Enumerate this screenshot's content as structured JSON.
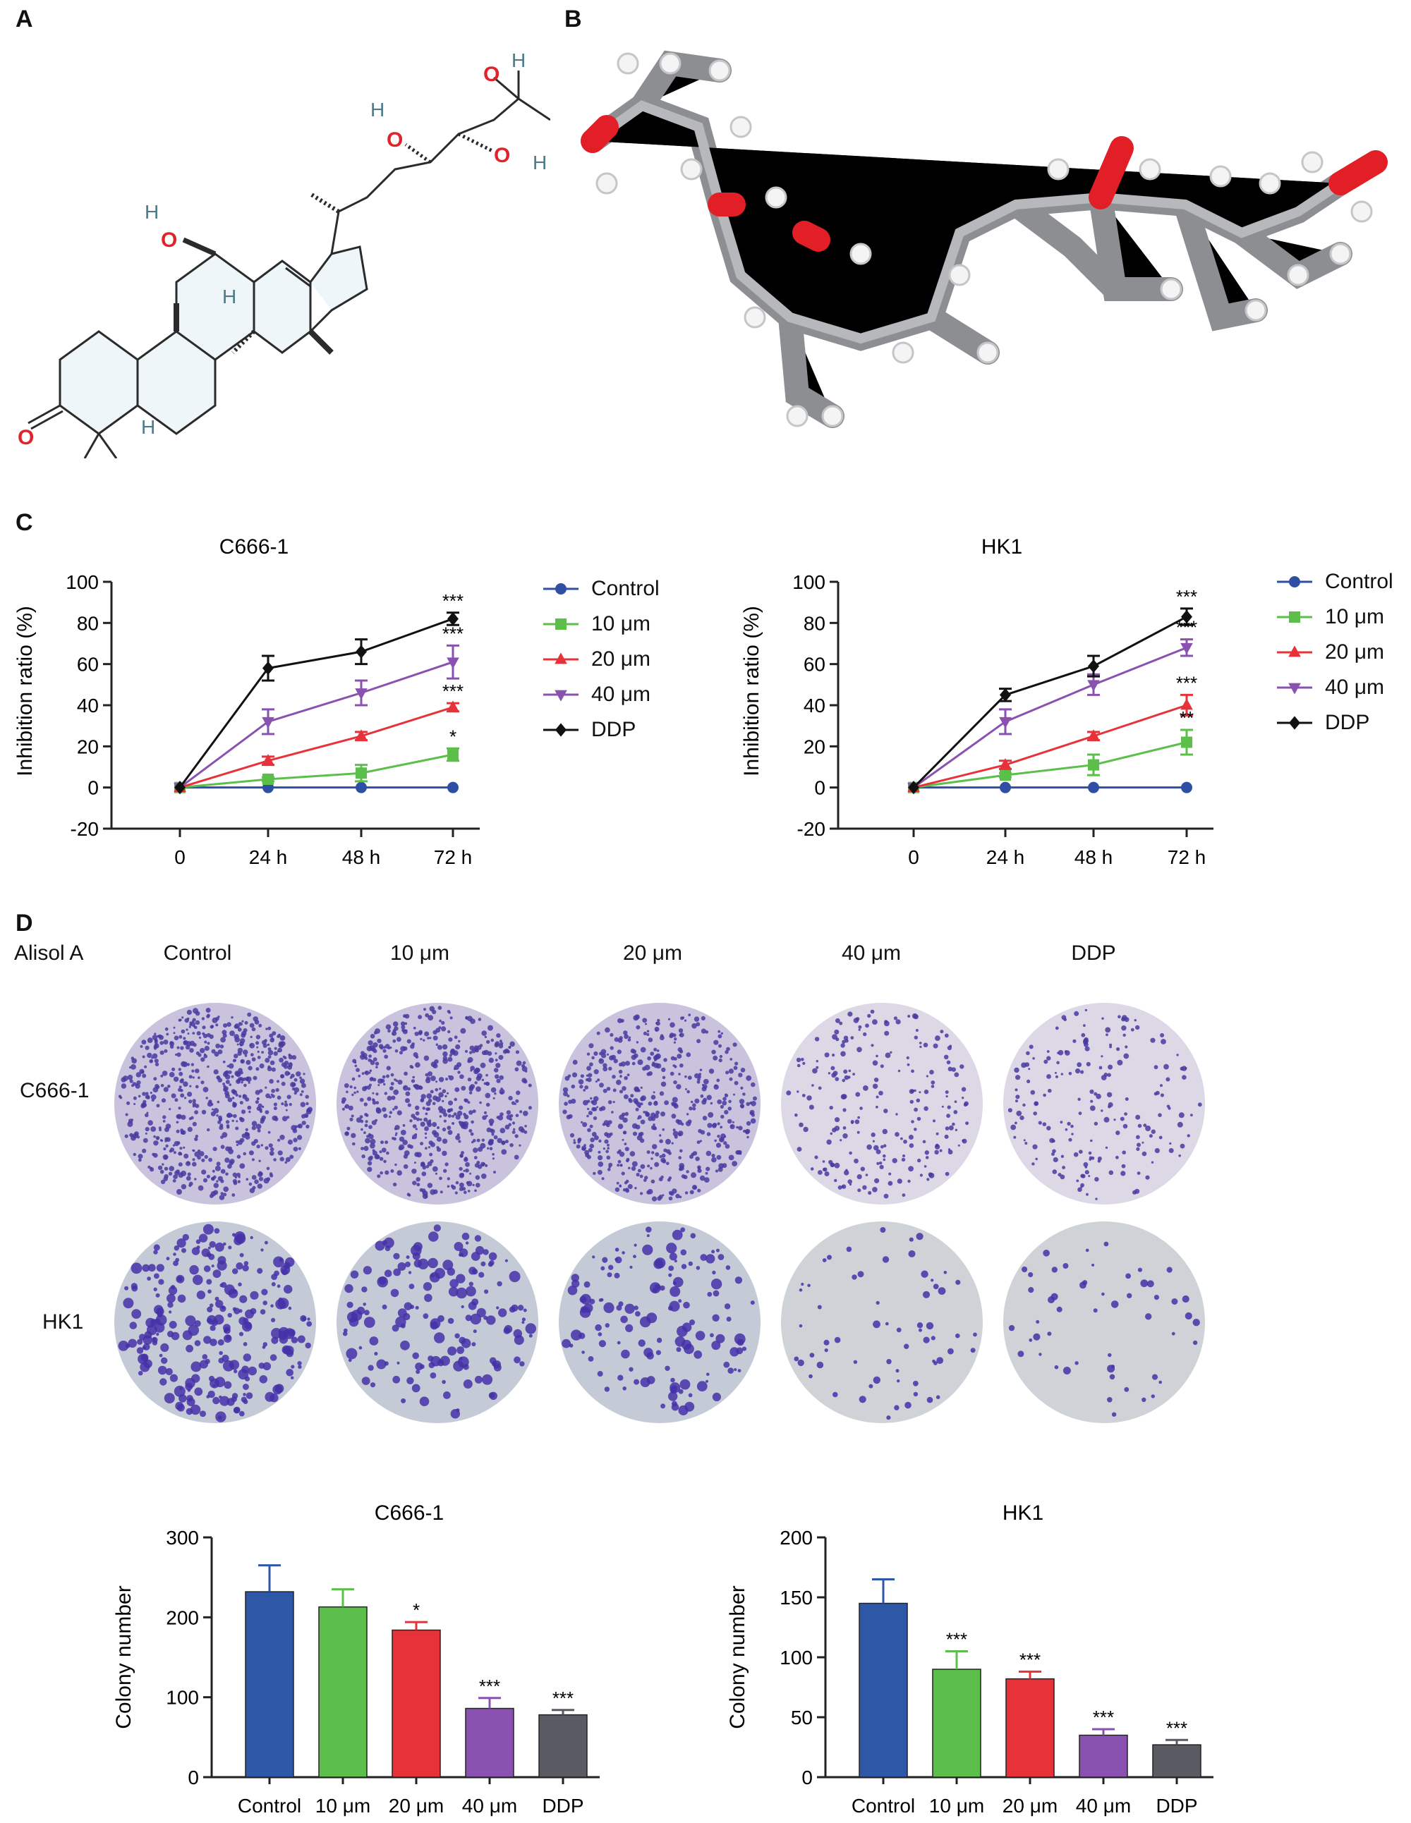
{
  "panels": {
    "a": "A",
    "b": "B",
    "c": "C",
    "d": "D"
  },
  "molecule_2d_atoms": {
    "o": "O",
    "h": "H"
  },
  "line_charts": [
    {
      "id": "c666",
      "title": "C666-1",
      "ylabel": "Inhibition ratio (%)",
      "xticks": [
        "0",
        "24 h",
        "48 h",
        "72 h"
      ],
      "yticks": [
        100,
        80,
        60,
        40,
        20,
        0,
        -20
      ],
      "ylim": [
        -20,
        100
      ],
      "series": [
        {
          "name": "Control",
          "color": "#2e4fa3",
          "marker": "circle",
          "values": [
            0,
            0,
            0,
            0
          ],
          "errors": [
            0,
            0,
            0,
            0
          ]
        },
        {
          "name": "10 μm",
          "color": "#5bbf4a",
          "marker": "square",
          "values": [
            0,
            4,
            7,
            16
          ],
          "errors": [
            0,
            1,
            4,
            3
          ]
        },
        {
          "name": "20 μm",
          "color": "#e8323a",
          "marker": "triangle-up",
          "values": [
            0,
            13,
            25,
            39
          ],
          "errors": [
            0,
            2,
            2,
            2
          ]
        },
        {
          "name": "40 μm",
          "color": "#8a52b0",
          "marker": "triangle-down",
          "values": [
            0,
            32,
            46,
            61
          ],
          "errors": [
            0,
            6,
            6,
            8
          ]
        },
        {
          "name": "DDP",
          "color": "#111111",
          "marker": "diamond",
          "values": [
            0,
            58,
            66,
            82
          ],
          "errors": [
            0,
            6,
            6,
            3
          ]
        }
      ],
      "significance": [
        {
          "series": "DDP",
          "label": "***"
        },
        {
          "series": "40 μm",
          "label": "***"
        },
        {
          "series": "20 μm",
          "label": "***"
        },
        {
          "series": "10 μm",
          "label": "*"
        }
      ]
    },
    {
      "id": "hk1",
      "title": "HK1",
      "ylabel": "Inhibition ratio (%)",
      "xticks": [
        "0",
        "24 h",
        "48 h",
        "72 h"
      ],
      "yticks": [
        100,
        80,
        60,
        40,
        20,
        0,
        -20
      ],
      "ylim": [
        -20,
        100
      ],
      "series": [
        {
          "name": "Control",
          "color": "#2e4fa3",
          "marker": "circle",
          "values": [
            0,
            0,
            0,
            0
          ],
          "errors": [
            0,
            0,
            0,
            0
          ]
        },
        {
          "name": "10 μm",
          "color": "#5bbf4a",
          "marker": "square",
          "values": [
            0,
            6,
            11,
            22
          ],
          "errors": [
            0,
            1,
            5,
            6
          ]
        },
        {
          "name": "20 μm",
          "color": "#e8323a",
          "marker": "triangle-up",
          "values": [
            0,
            11,
            25,
            40
          ],
          "errors": [
            0,
            2,
            2,
            5
          ]
        },
        {
          "name": "40 μm",
          "color": "#8a52b0",
          "marker": "triangle-down",
          "values": [
            0,
            32,
            50,
            68
          ],
          "errors": [
            0,
            6,
            5,
            4
          ]
        },
        {
          "name": "DDP",
          "color": "#111111",
          "marker": "diamond",
          "values": [
            0,
            45,
            59,
            83
          ],
          "errors": [
            0,
            3,
            5,
            4
          ]
        }
      ],
      "significance": [
        {
          "series": "DDP",
          "label": "***"
        },
        {
          "series": "40 μm",
          "label": "***"
        },
        {
          "series": "20 μm",
          "label": "***"
        },
        {
          "series": "10 μm",
          "label": "**"
        }
      ]
    }
  ],
  "colony_assay": {
    "treatment_label": "Alisol A",
    "columns": [
      "Control",
      "10 μm",
      "20 μm",
      "40 μm",
      "DDP"
    ],
    "rows": [
      "C666-1",
      "HK1"
    ],
    "colony_density": {
      "C666-1": [
        1.0,
        0.9,
        0.78,
        0.35,
        0.3
      ],
      "HK1": [
        1.0,
        0.62,
        0.55,
        0.24,
        0.2
      ]
    }
  },
  "chart_data": [
    {
      "type": "bar",
      "title": "C666-1",
      "ylabel": "Colony number",
      "categories": [
        "Control",
        "10 μm",
        "20 μm",
        "40 μm",
        "DDP"
      ],
      "values": [
        232,
        213,
        184,
        86,
        78
      ],
      "errors": [
        33,
        22,
        10,
        13,
        6
      ],
      "significance": [
        "",
        "",
        "*",
        "***",
        "***"
      ],
      "colors": [
        "#2f57a8",
        "#5cbf4b",
        "#e8323a",
        "#8a52b0",
        "#5a5b62"
      ],
      "ylim": [
        0,
        300
      ],
      "yticks": [
        0,
        100,
        200,
        300
      ]
    },
    {
      "type": "bar",
      "title": "HK1",
      "ylabel": "Colony number",
      "categories": [
        "Control",
        "10 μm",
        "20 μm",
        "40 μm",
        "DDP"
      ],
      "values": [
        145,
        90,
        82,
        35,
        27
      ],
      "errors": [
        20,
        15,
        6,
        5,
        4
      ],
      "significance": [
        "",
        "***",
        "***",
        "***",
        "***"
      ],
      "colors": [
        "#2f57a8",
        "#5cbf4b",
        "#e8323a",
        "#8a52b0",
        "#5a5b62"
      ],
      "ylim": [
        0,
        200
      ],
      "yticks": [
        0,
        50,
        100,
        150,
        200
      ]
    }
  ]
}
